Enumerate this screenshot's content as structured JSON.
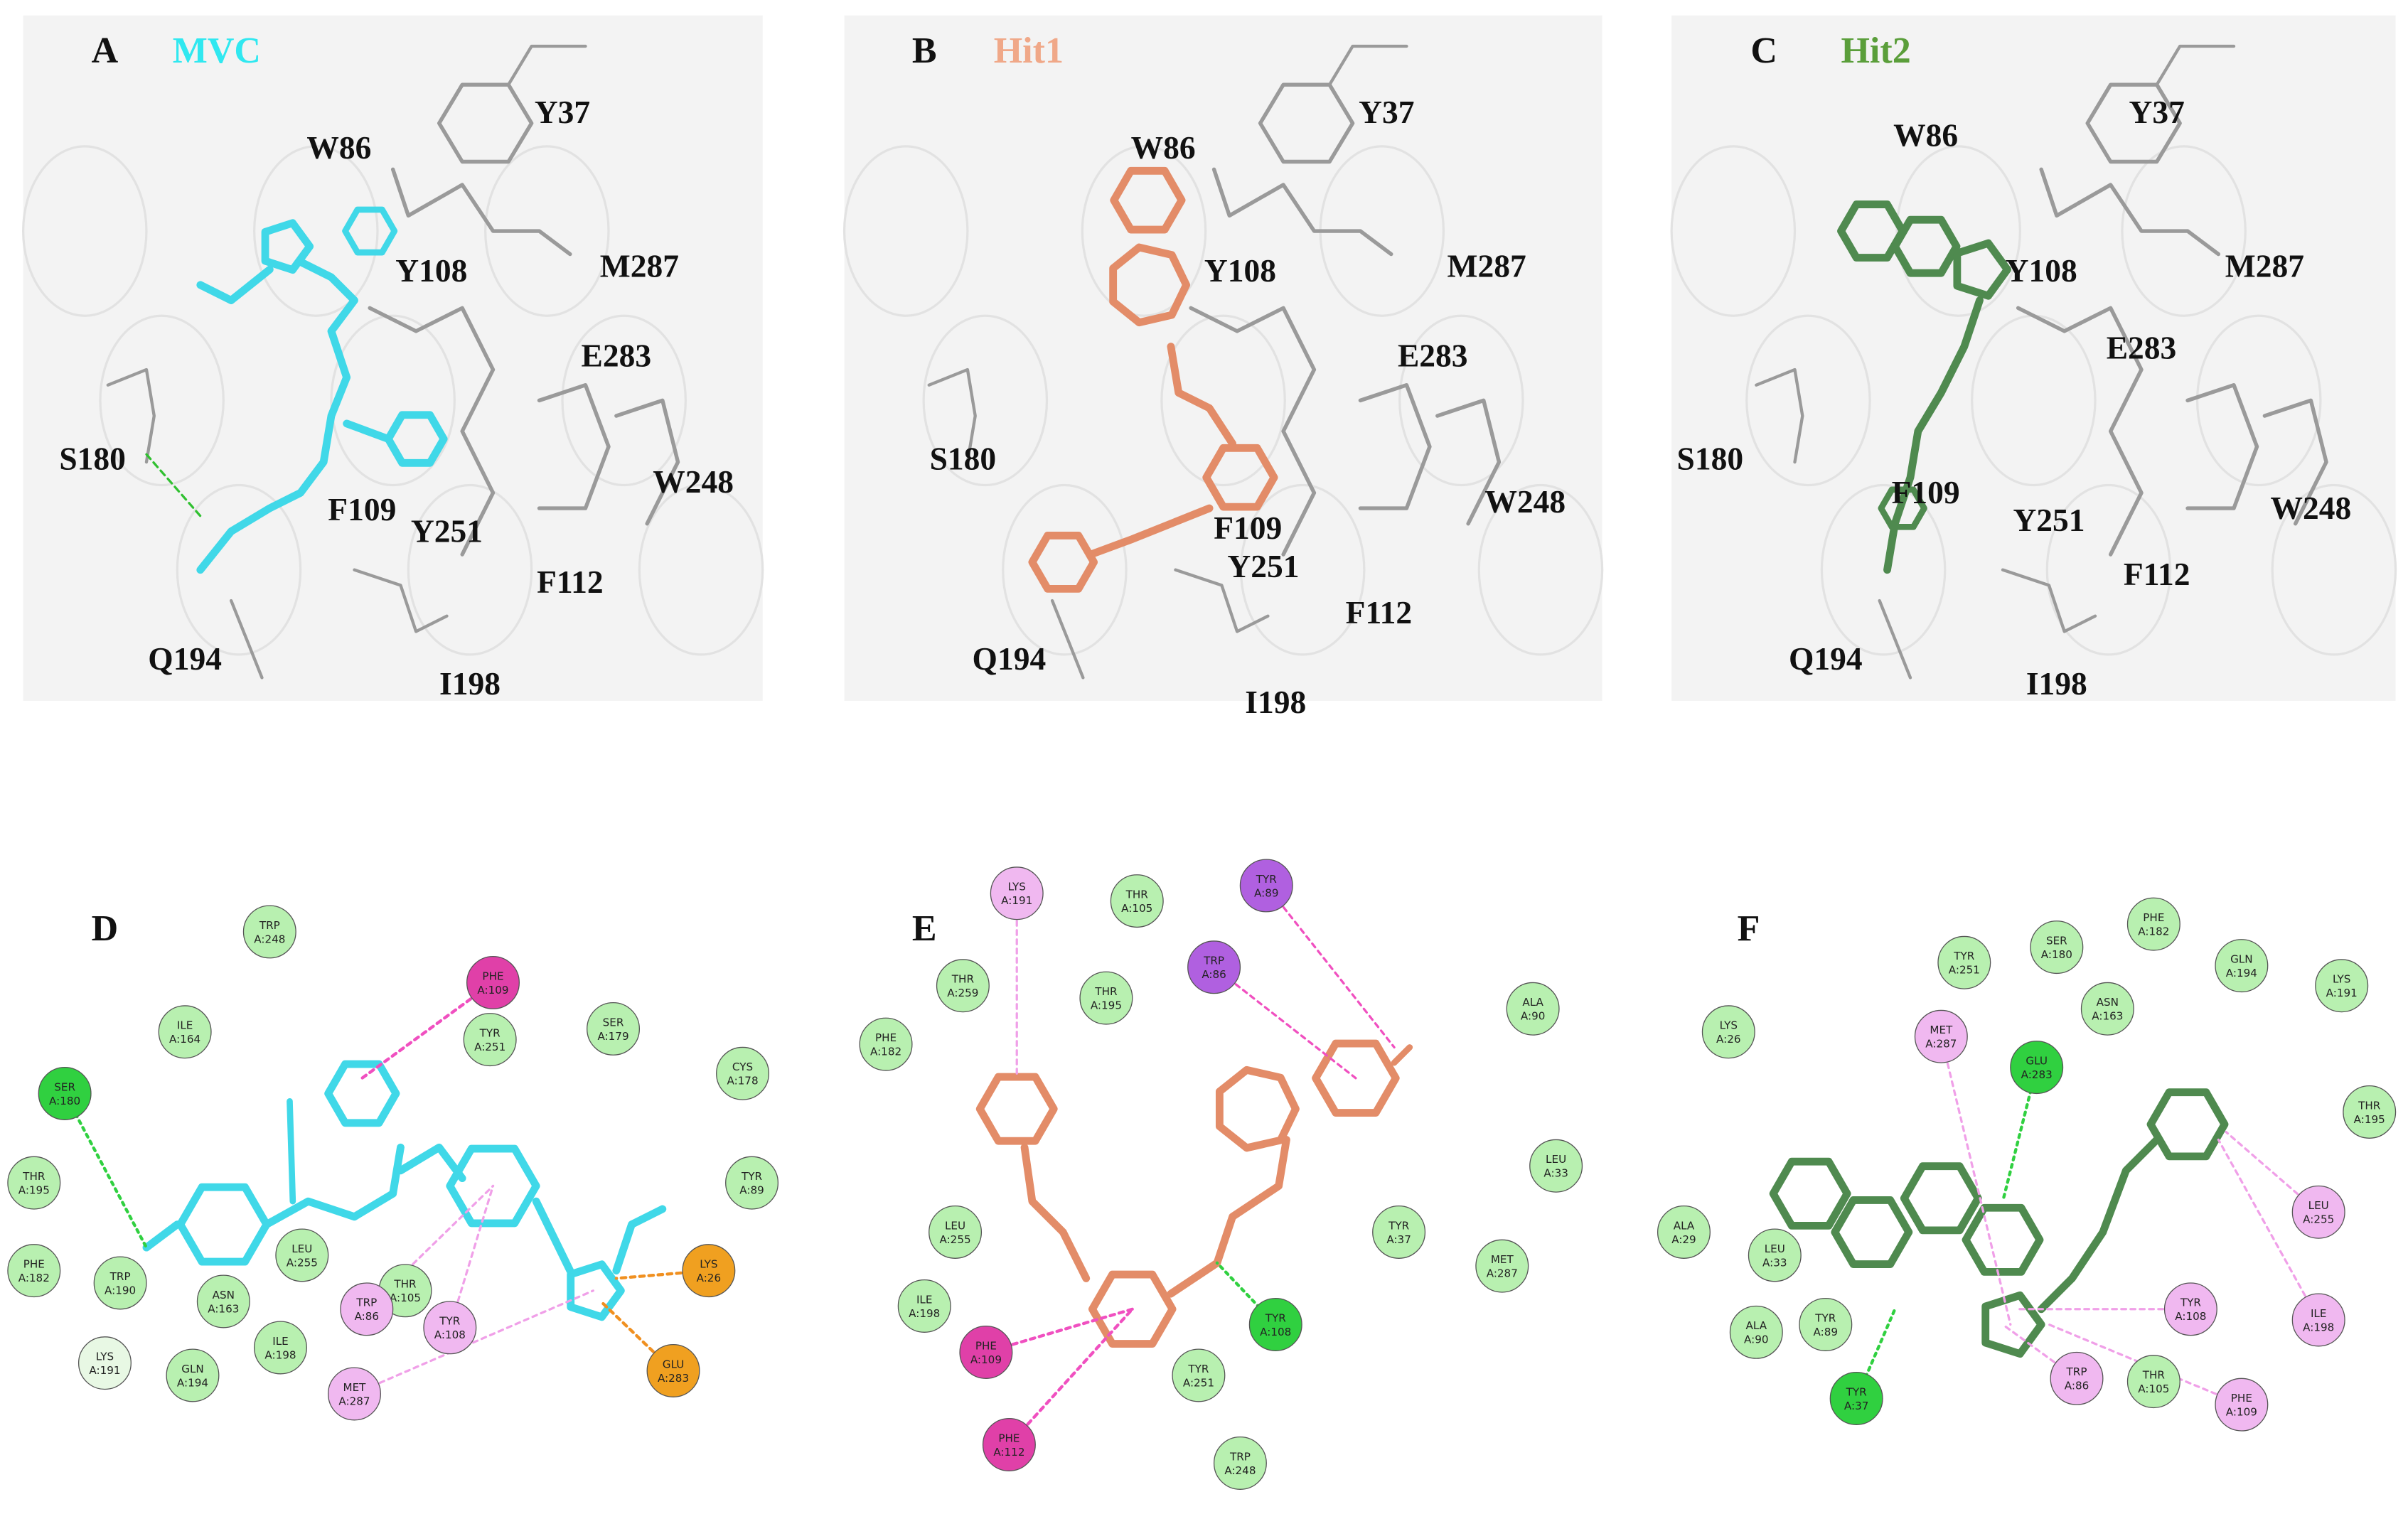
{
  "panels": [
    {
      "letter": "A",
      "ligand": "MVC",
      "residues": [
        "Y37",
        "W86",
        "Y108",
        "M287",
        "E283",
        "S180",
        "W248",
        "F109",
        "Y251",
        "F112",
        "Q194",
        "I198"
      ]
    },
    {
      "letter": "B",
      "ligand": "Hit1",
      "residues": [
        "Y37",
        "W86",
        "Y108",
        "M287",
        "E283",
        "S180",
        "W248",
        "F109",
        "Y251",
        "F112",
        "Q194",
        "I198"
      ]
    },
    {
      "letter": "C",
      "ligand": "Hit2",
      "residues": [
        "W86",
        "Y37",
        "Y108",
        "M287",
        "E283",
        "S180",
        "F109",
        "Y251",
        "W248",
        "F112",
        "Q194",
        "I198"
      ]
    },
    {
      "letter": "D",
      "nodes": [
        {
          "res": "TRP",
          "id": "A:248",
          "color": "#b8f0b0"
        },
        {
          "res": "PHE",
          "id": "A:109",
          "color": "#e040a8"
        },
        {
          "res": "ILE",
          "id": "A:164",
          "color": "#b8f0b0"
        },
        {
          "res": "SER",
          "id": "A:179",
          "color": "#b8f0b0"
        },
        {
          "res": "TYR",
          "id": "A:251",
          "color": "#b8f0b0"
        },
        {
          "res": "CYS",
          "id": "A:178",
          "color": "#b8f0b0"
        },
        {
          "res": "SER",
          "id": "A:180",
          "color": "#30d040"
        },
        {
          "res": "THR",
          "id": "A:195",
          "color": "#b8f0b0"
        },
        {
          "res": "TYR",
          "id": "A:89",
          "color": "#b8f0b0"
        },
        {
          "res": "LEU",
          "id": "A:255",
          "color": "#b8f0b0"
        },
        {
          "res": "THR",
          "id": "A:105",
          "color": "#b8f0b0"
        },
        {
          "res": "TRP",
          "id": "A:86",
          "color": "#f0b8f0"
        },
        {
          "res": "LYS",
          "id": "A:26",
          "color": "#f0a020"
        },
        {
          "res": "PHE",
          "id": "A:182",
          "color": "#b8f0b0"
        },
        {
          "res": "TRP",
          "id": "A:190",
          "color": "#b8f0b0"
        },
        {
          "res": "ASN",
          "id": "A:163",
          "color": "#b8f0b0"
        },
        {
          "res": "TYR",
          "id": "A:108",
          "color": "#f0b8f0"
        },
        {
          "res": "ILE",
          "id": "A:198",
          "color": "#b8f0b0"
        },
        {
          "res": "LYS",
          "id": "A:191",
          "color": "#e8f8e4"
        },
        {
          "res": "GLN",
          "id": "A:194",
          "color": "#b8f0b0"
        },
        {
          "res": "GLU",
          "id": "A:283",
          "color": "#f0a020"
        },
        {
          "res": "MET",
          "id": "A:287",
          "color": "#f0b8f0"
        }
      ]
    },
    {
      "letter": "E",
      "nodes": [
        {
          "res": "TYR",
          "id": "A:89",
          "color": "#b060e0"
        },
        {
          "res": "LYS",
          "id": "A:191",
          "color": "#f0b8f0"
        },
        {
          "res": "THR",
          "id": "A:105",
          "color": "#b8f0b0"
        },
        {
          "res": "TRP",
          "id": "A:86",
          "color": "#b060e0"
        },
        {
          "res": "THR",
          "id": "A:259",
          "color": "#b8f0b0"
        },
        {
          "res": "THR",
          "id": "A:195",
          "color": "#b8f0b0"
        },
        {
          "res": "ALA",
          "id": "A:90",
          "color": "#b8f0b0"
        },
        {
          "res": "PHE",
          "id": "A:182",
          "color": "#b8f0b0"
        },
        {
          "res": "LEU",
          "id": "A:255",
          "color": "#b8f0b0"
        },
        {
          "res": "LEU",
          "id": "A:33",
          "color": "#b8f0b0"
        },
        {
          "res": "ILE",
          "id": "A:198",
          "color": "#b8f0b0"
        },
        {
          "res": "TYR",
          "id": "A:37",
          "color": "#b8f0b0"
        },
        {
          "res": "MET",
          "id": "A:287",
          "color": "#b8f0b0"
        },
        {
          "res": "PHE",
          "id": "A:109",
          "color": "#e040a8"
        },
        {
          "res": "TYR",
          "id": "A:108",
          "color": "#30d040"
        },
        {
          "res": "TYR",
          "id": "A:251",
          "color": "#b8f0b0"
        },
        {
          "res": "PHE",
          "id": "A:112",
          "color": "#e040a8"
        },
        {
          "res": "TRP",
          "id": "A:248",
          "color": "#b8f0b0"
        }
      ]
    },
    {
      "letter": "F",
      "nodes": [
        {
          "res": "PHE",
          "id": "A:182",
          "color": "#b8f0b0"
        },
        {
          "res": "TYR",
          "id": "A:251",
          "color": "#b8f0b0"
        },
        {
          "res": "SER",
          "id": "A:180",
          "color": "#b8f0b0"
        },
        {
          "res": "GLN",
          "id": "A:194",
          "color": "#b8f0b0"
        },
        {
          "res": "ASN",
          "id": "A:163",
          "color": "#b8f0b0"
        },
        {
          "res": "LYS",
          "id": "A:191",
          "color": "#b8f0b0"
        },
        {
          "res": "LYS",
          "id": "A:26",
          "color": "#b8f0b0"
        },
        {
          "res": "MET",
          "id": "A:287",
          "color": "#f0b8f0"
        },
        {
          "res": "GLU",
          "id": "A:283",
          "color": "#30d040"
        },
        {
          "res": "THR",
          "id": "A:195",
          "color": "#b8f0b0"
        },
        {
          "res": "ALA",
          "id": "A:29",
          "color": "#b8f0b0"
        },
        {
          "res": "LEU",
          "id": "A:33",
          "color": "#b8f0b0"
        },
        {
          "res": "LEU",
          "id": "A:255",
          "color": "#f0b8f0"
        },
        {
          "res": "TYR",
          "id": "A:108",
          "color": "#f0b8f0"
        },
        {
          "res": "ILE",
          "id": "A:198",
          "color": "#f0b8f0"
        },
        {
          "res": "ALA",
          "id": "A:90",
          "color": "#b8f0b0"
        },
        {
          "res": "TYR",
          "id": "A:89",
          "color": "#b8f0b0"
        },
        {
          "res": "TRP",
          "id": "A:86",
          "color": "#f0b8f0"
        },
        {
          "res": "THR",
          "id": "A:105",
          "color": "#b8f0b0"
        },
        {
          "res": "PHE",
          "id": "A:109",
          "color": "#f0b8f0"
        },
        {
          "res": "TYR",
          "id": "A:37",
          "color": "#30d040"
        }
      ]
    }
  ]
}
